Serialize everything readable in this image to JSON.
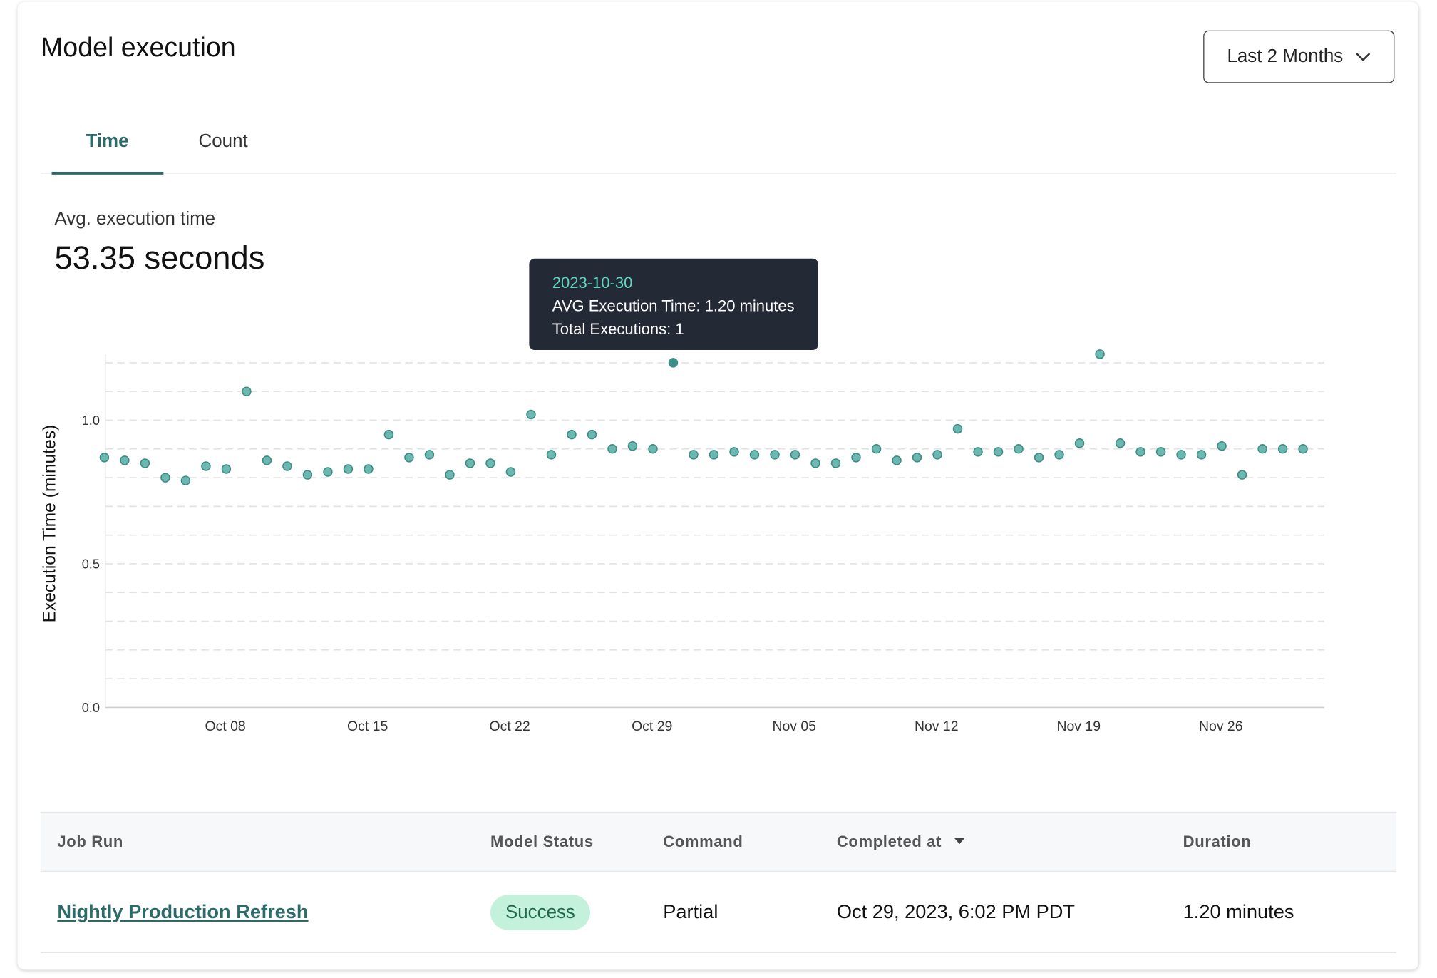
{
  "header": {
    "title": "Model execution",
    "range_select": "Last 2 Months"
  },
  "tabs": [
    {
      "label": "Time",
      "active": true
    },
    {
      "label": "Count",
      "active": false
    }
  ],
  "summary": {
    "label": "Avg. execution time",
    "value": "53.35 seconds"
  },
  "tooltip": {
    "date": "2023-10-30",
    "line1": "AVG Execution Time: 1.20 minutes",
    "line2": "Total Executions: 1"
  },
  "colors": {
    "accent": "#2d6b6a",
    "dot_fill": "#6ab8b0",
    "dot_stroke": "#3d8c85",
    "tooltip_bg": "#232a36",
    "tooltip_date": "#5fd6c0",
    "success_bg": "#c4f1dc",
    "success_text": "#1e6b4c"
  },
  "chart_data": {
    "type": "scatter",
    "ylabel": "Execution Time (minutes)",
    "xlabel": "",
    "ylim": [
      0,
      1.25
    ],
    "yticks": [
      "0.0",
      "0.5",
      "1.0"
    ],
    "ytick_values": [
      0,
      0.5,
      1.0
    ],
    "xticks": [
      "Oct 08",
      "Oct 15",
      "Oct 22",
      "Oct 29",
      "Nov 05",
      "Nov 12",
      "Nov 19",
      "Nov 26"
    ],
    "xtick_dates": [
      "2023-10-08",
      "2023-10-15",
      "2023-10-22",
      "2023-10-29",
      "2023-11-05",
      "2023-11-12",
      "2023-11-19",
      "2023-11-26"
    ],
    "xlim": [
      "2023-10-02",
      "2023-11-30"
    ],
    "grid": true,
    "highlighted": "2023-10-30",
    "x": [
      "2023-10-02",
      "2023-10-03",
      "2023-10-04",
      "2023-10-05",
      "2023-10-06",
      "2023-10-07",
      "2023-10-08",
      "2023-10-09",
      "2023-10-10",
      "2023-10-11",
      "2023-10-12",
      "2023-10-13",
      "2023-10-14",
      "2023-10-15",
      "2023-10-16",
      "2023-10-17",
      "2023-10-18",
      "2023-10-19",
      "2023-10-20",
      "2023-10-21",
      "2023-10-22",
      "2023-10-23",
      "2023-10-24",
      "2023-10-25",
      "2023-10-26",
      "2023-10-27",
      "2023-10-28",
      "2023-10-29",
      "2023-10-30",
      "2023-10-31",
      "2023-11-01",
      "2023-11-02",
      "2023-11-03",
      "2023-11-04",
      "2023-11-05",
      "2023-11-06",
      "2023-11-07",
      "2023-11-08",
      "2023-11-09",
      "2023-11-10",
      "2023-11-11",
      "2023-11-12",
      "2023-11-13",
      "2023-11-14",
      "2023-11-15",
      "2023-11-16",
      "2023-11-17",
      "2023-11-18",
      "2023-11-19",
      "2023-11-20",
      "2023-11-21",
      "2023-11-22",
      "2023-11-23",
      "2023-11-24",
      "2023-11-25",
      "2023-11-26",
      "2023-11-27",
      "2023-11-28",
      "2023-11-29",
      "2023-11-30"
    ],
    "y": [
      0.87,
      0.86,
      0.85,
      0.8,
      0.79,
      0.84,
      0.83,
      1.1,
      0.86,
      0.84,
      0.81,
      0.82,
      0.83,
      0.83,
      0.95,
      0.87,
      0.88,
      0.81,
      0.85,
      0.85,
      0.82,
      1.02,
      0.88,
      0.95,
      0.95,
      0.9,
      0.91,
      0.9,
      1.2,
      0.88,
      0.88,
      0.89,
      0.88,
      0.88,
      0.88,
      0.85,
      0.85,
      0.87,
      0.9,
      0.86,
      0.87,
      0.88,
      0.97,
      0.89,
      0.89,
      0.9,
      0.87,
      0.88,
      0.92,
      1.23,
      0.92,
      0.89,
      0.89,
      0.88,
      0.88,
      0.91,
      0.81,
      0.9,
      0.9,
      0.9
    ]
  },
  "table": {
    "columns": [
      "Job Run",
      "Model Status",
      "Command",
      "Completed at",
      "Duration"
    ],
    "rows": [
      {
        "job_run": "Nightly Production Refresh",
        "status": "Success",
        "command": "Partial",
        "completed_at": "Oct 29, 2023, 6:02 PM PDT",
        "duration": "1.20 minutes"
      }
    ]
  }
}
